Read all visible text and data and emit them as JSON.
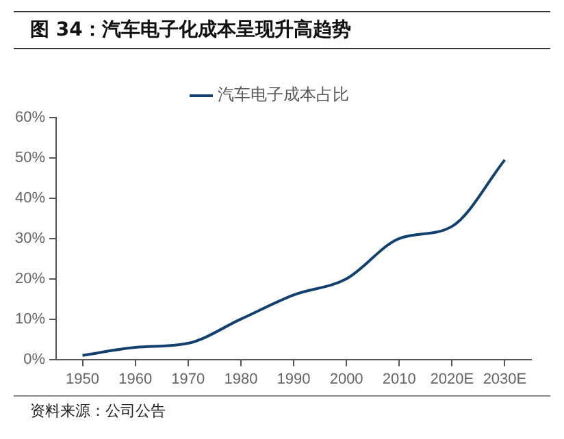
{
  "chart_data": {
    "type": "line",
    "title": "图 34：汽车电子化成本呈现升高趋势",
    "categories": [
      "1950",
      "1960",
      "1970",
      "1980",
      "1990",
      "2000",
      "2010",
      "2020E",
      "2030E"
    ],
    "series": [
      {
        "name": "汽车电子成本占比",
        "color": "#12406f",
        "values": [
          1,
          3,
          4,
          10,
          16,
          20,
          30,
          33,
          49.5
        ]
      }
    ],
    "ylim": [
      0,
      60
    ],
    "yticks": [
      {
        "value": 0,
        "label": "0%"
      },
      {
        "value": 10,
        "label": "10%"
      },
      {
        "value": 20,
        "label": "20%"
      },
      {
        "value": 30,
        "label": "30%"
      },
      {
        "value": 40,
        "label": "40%"
      },
      {
        "value": 50,
        "label": "50%"
      },
      {
        "value": 60,
        "label": "60%"
      }
    ],
    "grid": false,
    "legend": "top",
    "marker": "none",
    "line_style": "solid",
    "annotations": [
      "资料来源：公司公告"
    ]
  }
}
